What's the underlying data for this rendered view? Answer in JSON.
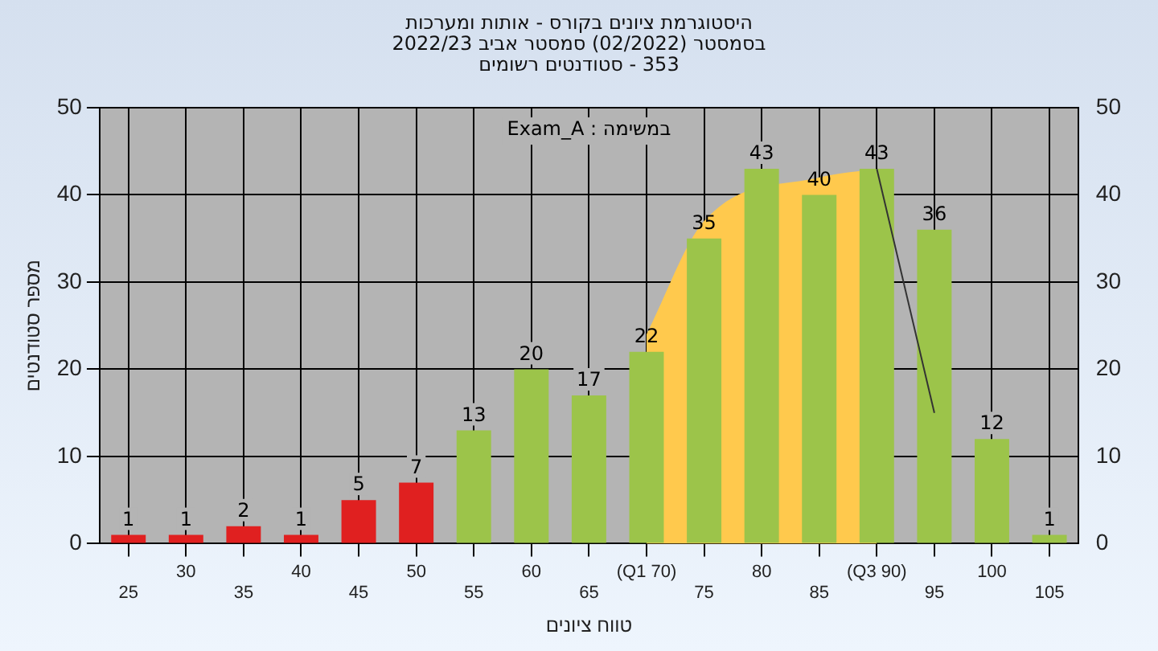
{
  "chart_data": {
    "type": "bar",
    "title": "היסטוגרמת ציונים בקורס - אותות ומערכות",
    "subtitle": "בסמסטר (02/2022) סמסטר אביב 2022/23\n353 - סטודנטים רשומים",
    "xlabel": "טווח ציונים",
    "ylabel": "מספר סטודנטים",
    "annotations": [
      "במשימה : Exam_A"
    ],
    "categories": [
      "25",
      "30",
      "35",
      "40",
      "45",
      "50",
      "55",
      "60",
      "65",
      "(Q1 70)",
      "75",
      "80",
      "85",
      "(Q3 90)",
      "95",
      "100",
      "105"
    ],
    "series": [
      {
        "type": "area",
        "color": "#ffc94d",
        "values": [
          null,
          null,
          null,
          null,
          null,
          null,
          null,
          null,
          null,
          24,
          37,
          null,
          42,
          43,
          null,
          null,
          null
        ]
      },
      {
        "type": "line",
        "color": "#333333",
        "values": [
          null,
          null,
          null,
          null,
          null,
          null,
          null,
          null,
          null,
          null,
          null,
          null,
          null,
          43,
          15,
          null,
          null
        ]
      },
      {
        "colors": [
          "#e02020",
          "#e02020",
          "#e02020",
          "#e02020",
          "#e02020",
          "#e02020",
          "#9cc44a",
          "#9cc44a",
          "#9cc44a",
          "#9cc44a",
          "#9cc44a",
          "#9cc44a",
          "#9cc44a",
          "#9cc44a",
          "#9cc44a",
          "#9cc44a",
          "#9cc44a"
        ],
        "values": [
          1,
          1,
          2,
          1,
          5,
          7,
          13,
          20,
          17,
          22,
          35,
          43,
          40,
          43,
          36,
          12,
          1
        ],
        "value_labels": [
          "1",
          "1",
          "2",
          "1",
          "5",
          "7",
          "13",
          "20",
          "17",
          "22",
          "35",
          "43",
          "40",
          "43",
          "36",
          "12",
          "1"
        ]
      }
    ],
    "ylim": [
      0,
      50
    ],
    "yticks": [
      0,
      10,
      20,
      30,
      40,
      50
    ],
    "y2lim": [
      0,
      50
    ],
    "y2ticks": [
      0,
      10,
      20,
      30,
      40,
      50
    ],
    "grid": true,
    "legend": false
  }
}
